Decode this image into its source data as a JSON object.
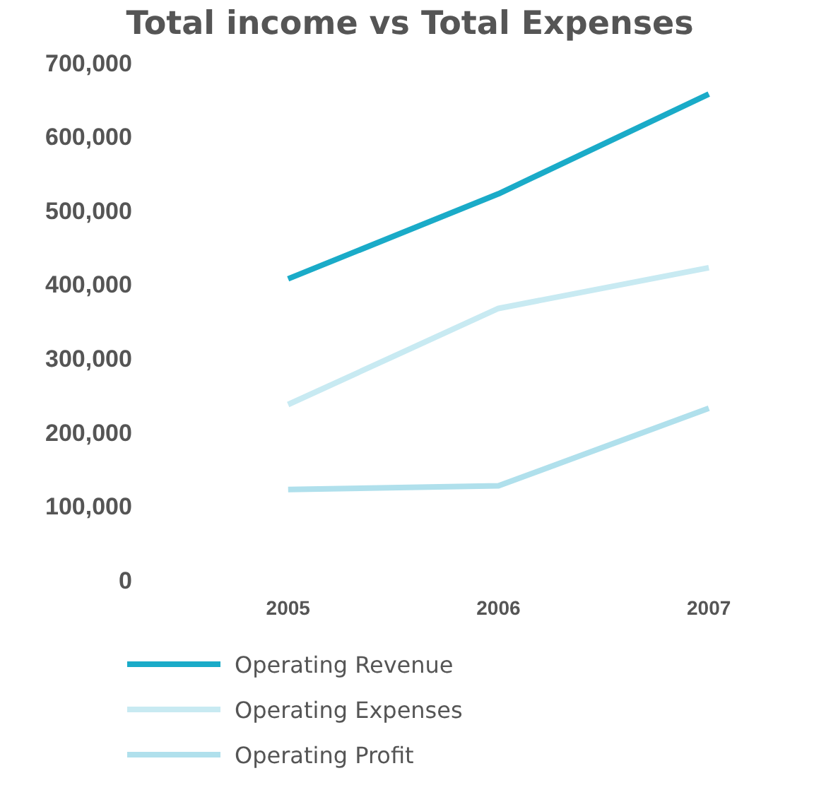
{
  "chart_data": {
    "type": "line",
    "title": "Total income vs Total Expenses",
    "categories": [
      "2005",
      "2006",
      "2007"
    ],
    "series": [
      {
        "name": "Operating Revenue",
        "color": "#1aabc8",
        "values": [
          410000,
          525000,
          660000
        ]
      },
      {
        "name": "Operating Expenses",
        "color": "#c8eaf2",
        "values": [
          240000,
          370000,
          425000
        ]
      },
      {
        "name": "Operating Profit",
        "color": "#b0e0ec",
        "values": [
          125000,
          130000,
          235000
        ]
      }
    ],
    "ylim": [
      0,
      700000
    ],
    "yticks": [
      0,
      {
        "value": 100000,
        "label": "100,000"
      },
      {
        "value": 200000,
        "label": "200,000"
      },
      {
        "value": 300000,
        "label": "300,000"
      },
      {
        "value": 400000,
        "label": "400,000"
      },
      {
        "value": 500000,
        "label": "500,000"
      },
      {
        "value": 600000,
        "label": "600,000"
      },
      {
        "value": 700000,
        "label": "700,000"
      }
    ],
    "grid": false,
    "legend": "bottom left",
    "marker": "none",
    "line_style": "solid"
  }
}
